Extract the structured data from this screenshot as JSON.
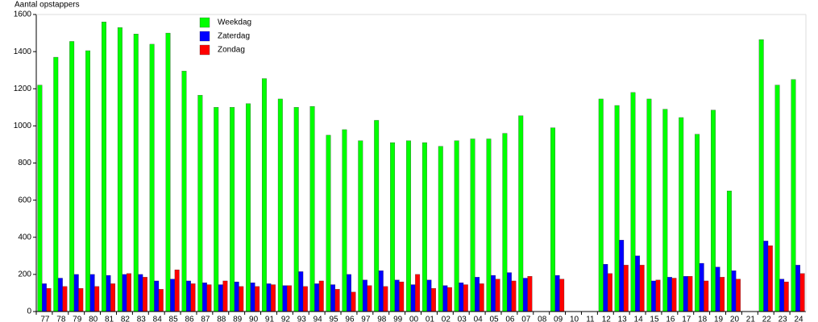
{
  "chart_data": {
    "type": "bar",
    "y_label": "Aantal opstappers",
    "categories": [
      "77",
      "78",
      "79",
      "80",
      "81",
      "82",
      "83",
      "84",
      "85",
      "86",
      "87",
      "88",
      "89",
      "90",
      "91",
      "92",
      "93",
      "94",
      "95",
      "96",
      "97",
      "98",
      "99",
      "00",
      "01",
      "02",
      "03",
      "04",
      "05",
      "06",
      "07",
      "08",
      "09",
      "10",
      "11",
      "12",
      "13",
      "14",
      "15",
      "16",
      "17",
      "18",
      "19",
      "20",
      "21",
      "22",
      "23",
      "24"
    ],
    "series": [
      {
        "name": "Weekdag",
        "color": "#00ff00",
        "values": [
          1220,
          1370,
          1455,
          1405,
          1560,
          1530,
          1495,
          1440,
          1500,
          1295,
          1165,
          1100,
          1100,
          1120,
          1255,
          1145,
          1100,
          1105,
          950,
          980,
          920,
          1030,
          910,
          920,
          910,
          890,
          920,
          930,
          930,
          960,
          1055,
          null,
          990,
          null,
          null,
          1145,
          1110,
          1180,
          1145,
          1090,
          1045,
          955,
          1085,
          650,
          null,
          1465,
          1220,
          1250
        ]
      },
      {
        "name": "Zaterdag",
        "color": "#0000ff",
        "values": [
          150,
          180,
          200,
          200,
          195,
          200,
          200,
          165,
          175,
          165,
          155,
          145,
          160,
          155,
          150,
          140,
          215,
          150,
          145,
          200,
          170,
          220,
          170,
          145,
          170,
          140,
          155,
          185,
          195,
          210,
          180,
          null,
          195,
          null,
          null,
          255,
          385,
          300,
          165,
          185,
          190,
          260,
          240,
          220,
          null,
          380,
          175,
          250
        ]
      },
      {
        "name": "Zondag",
        "color": "#ff0000",
        "values": [
          125,
          135,
          125,
          135,
          150,
          205,
          185,
          120,
          225,
          150,
          145,
          165,
          135,
          135,
          145,
          140,
          135,
          165,
          120,
          105,
          140,
          135,
          160,
          200,
          125,
          130,
          145,
          150,
          175,
          165,
          190,
          null,
          175,
          null,
          null,
          205,
          250,
          250,
          170,
          180,
          190,
          165,
          185,
          175,
          null,
          355,
          160,
          205
        ]
      }
    ],
    "ylim": [
      0,
      1600
    ],
    "yticks": [
      0,
      200,
      400,
      600,
      800,
      1000,
      1200,
      1400,
      1600
    ],
    "grid": false
  }
}
